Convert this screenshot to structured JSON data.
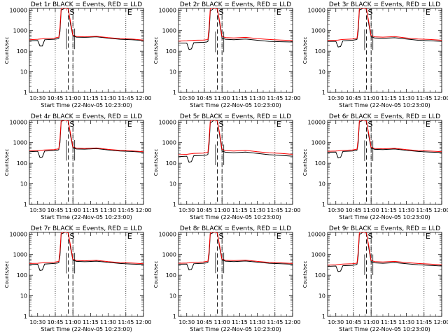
{
  "chart_data": [
    {
      "type": "line",
      "title": "Det 1r BLACK = Events, RED = LLD",
      "xlabel": "Start Time (22-Nov-05 10:23:00)",
      "ylabel": "Counts/sec",
      "x_ticks": [
        "10:30",
        "10:45",
        "11:00",
        "11:15",
        "11:30",
        "11:45",
        "12:00"
      ],
      "y_ticks": [
        "1",
        "10",
        "100",
        "1000",
        "10000"
      ],
      "y_scale": "log",
      "ylim": [
        1,
        12000
      ],
      "xlim_minutes": [
        23,
        120
      ],
      "markers": [
        "S",
        "E"
      ],
      "x_minutes": [
        23,
        30,
        32,
        34,
        36,
        44,
        47,
        48,
        49,
        50,
        53,
        55,
        56,
        58,
        60,
        63,
        70,
        80,
        90,
        100,
        110,
        120
      ],
      "series": [
        {
          "name": "Events",
          "color": "#000000",
          "values": [
            320,
            330,
            180,
            180,
            360,
            380,
            400,
            420,
            900,
            10000,
            12000,
            12000,
            12000,
            2000,
            560,
            480,
            470,
            500,
            430,
            380,
            360,
            330
          ]
        },
        {
          "name": "LLD",
          "color": "#ff0000",
          "values": [
            360,
            380,
            390,
            400,
            420,
            430,
            470,
            480,
            1500,
            12000,
            12000,
            12000,
            11000,
            2600,
            610,
            520,
            500,
            530,
            460,
            410,
            390,
            350
          ]
        }
      ]
    },
    {
      "type": "line",
      "title": "Det 2r BLACK = Events, RED = LLD",
      "xlabel": "Start Time (22-Nov-05 10:23:00)",
      "ylabel": "Counts/sec",
      "x_ticks": [
        "10:30",
        "10:45",
        "11:00",
        "11:15",
        "11:30",
        "11:45",
        "12:00"
      ],
      "y_ticks": [
        "1",
        "10",
        "100",
        "1000",
        "10000"
      ],
      "y_scale": "log",
      "ylim": [
        1,
        12000
      ],
      "xlim_minutes": [
        23,
        120
      ],
      "markers": [
        "S",
        "E"
      ],
      "x_minutes": [
        23,
        30,
        32,
        34,
        36,
        44,
        47,
        48,
        49,
        50,
        53,
        55,
        56,
        58,
        60,
        63,
        70,
        80,
        90,
        100,
        110,
        120
      ],
      "series": [
        {
          "name": "Events",
          "color": "#000000",
          "values": [
            250,
            250,
            120,
            130,
            260,
            270,
            280,
            300,
            800,
            9000,
            12000,
            12000,
            12000,
            2200,
            430,
            380,
            360,
            390,
            340,
            300,
            290,
            280
          ]
        },
        {
          "name": "LLD",
          "color": "#ff0000",
          "values": [
            310,
            320,
            330,
            330,
            340,
            350,
            360,
            380,
            1400,
            12000,
            12000,
            12000,
            11000,
            2800,
            520,
            460,
            440,
            470,
            410,
            370,
            350,
            330
          ]
        }
      ]
    },
    {
      "type": "line",
      "title": "Det 3r BLACK = Events, RED = LLD",
      "xlabel": "Start Time (22-Nov-05 10:23:00)",
      "ylabel": "Counts/sec",
      "x_ticks": [
        "10:30",
        "10:45",
        "11:00",
        "11:15",
        "11:30",
        "11:45",
        "12:00"
      ],
      "y_ticks": [
        "1",
        "10",
        "100",
        "1000",
        "10000"
      ],
      "y_scale": "log",
      "ylim": [
        1,
        12000
      ],
      "xlim_minutes": [
        23,
        120
      ],
      "markers": [
        "S",
        "E"
      ],
      "x_minutes": [
        23,
        30,
        32,
        34,
        36,
        44,
        47,
        48,
        49,
        50,
        53,
        55,
        56,
        58,
        60,
        63,
        70,
        80,
        90,
        100,
        110,
        120
      ],
      "series": [
        {
          "name": "Events",
          "color": "#000000",
          "values": [
            300,
            300,
            160,
            170,
            320,
            340,
            360,
            380,
            900,
            10000,
            12000,
            12000,
            12000,
            2100,
            500,
            440,
            420,
            450,
            390,
            340,
            320,
            300
          ]
        },
        {
          "name": "LLD",
          "color": "#ff0000",
          "values": [
            330,
            340,
            350,
            360,
            370,
            390,
            420,
            430,
            1500,
            12000,
            12000,
            12000,
            11000,
            2700,
            570,
            500,
            480,
            510,
            440,
            390,
            370,
            340
          ]
        }
      ]
    },
    {
      "type": "line",
      "title": "Det 4r BLACK = Events, RED = LLD",
      "xlabel": "Start Time (22-Nov-05 10:23:00)",
      "ylabel": "Counts/sec",
      "x_ticks": [
        "10:30",
        "10:45",
        "11:00",
        "11:15",
        "11:30",
        "11:45",
        "12:00"
      ],
      "y_ticks": [
        "1",
        "10",
        "100",
        "1000",
        "10000"
      ],
      "y_scale": "log",
      "ylim": [
        1,
        12000
      ],
      "xlim_minutes": [
        23,
        120
      ],
      "markers": [
        "S",
        "E"
      ],
      "x_minutes": [
        23,
        30,
        32,
        34,
        36,
        44,
        47,
        48,
        49,
        50,
        53,
        55,
        56,
        58,
        60,
        63,
        70,
        80,
        90,
        100,
        110,
        120
      ],
      "series": [
        {
          "name": "Events",
          "color": "#000000",
          "values": [
            360,
            380,
            190,
            200,
            390,
            410,
            430,
            450,
            1000,
            11000,
            12000,
            12000,
            12000,
            2100,
            560,
            490,
            480,
            510,
            440,
            390,
            370,
            340
          ]
        },
        {
          "name": "LLD",
          "color": "#ff0000",
          "values": [
            400,
            410,
            420,
            430,
            440,
            460,
            490,
            500,
            1600,
            12000,
            12000,
            12000,
            11000,
            2700,
            620,
            540,
            520,
            550,
            470,
            420,
            400,
            360
          ]
        }
      ]
    },
    {
      "type": "line",
      "title": "Det 5r BLACK = Events, RED = LLD",
      "xlabel": "Start Time (22-Nov-05 10:23:00)",
      "ylabel": "Counts/sec",
      "x_ticks": [
        "10:30",
        "10:45",
        "11:00",
        "11:15",
        "11:30",
        "11:45",
        "12:00"
      ],
      "y_ticks": [
        "1",
        "10",
        "100",
        "1000",
        "10000"
      ],
      "y_scale": "log",
      "ylim": [
        1,
        12000
      ],
      "xlim_minutes": [
        23,
        120
      ],
      "markers": [
        "S",
        "E"
      ],
      "x_minutes": [
        23,
        30,
        32,
        34,
        36,
        44,
        47,
        48,
        49,
        50,
        53,
        55,
        56,
        58,
        60,
        63,
        70,
        80,
        90,
        100,
        110,
        120
      ],
      "series": [
        {
          "name": "Events",
          "color": "#000000",
          "values": [
            210,
            220,
            110,
            120,
            230,
            240,
            250,
            270,
            800,
            9000,
            12000,
            12000,
            12000,
            2200,
            390,
            340,
            320,
            350,
            300,
            260,
            240,
            220
          ]
        },
        {
          "name": "LLD",
          "color": "#ff0000",
          "values": [
            260,
            270,
            280,
            290,
            300,
            310,
            330,
            340,
            1400,
            12000,
            12000,
            12000,
            11000,
            2800,
            470,
            410,
            390,
            420,
            360,
            320,
            300,
            270
          ]
        }
      ]
    },
    {
      "type": "line",
      "title": "Det 6r BLACK = Events, RED = LLD",
      "xlabel": "Start Time (22-Nov-05 10:23:00)",
      "ylabel": "Counts/sec",
      "x_ticks": [
        "10:30",
        "10:45",
        "11:00",
        "11:15",
        "11:30",
        "11:45",
        "12:00"
      ],
      "y_ticks": [
        "1",
        "10",
        "100",
        "1000",
        "10000"
      ],
      "y_scale": "log",
      "ylim": [
        1,
        12000
      ],
      "xlim_minutes": [
        23,
        120
      ],
      "markers": [
        "S",
        "E"
      ],
      "x_minutes": [
        23,
        30,
        32,
        34,
        36,
        44,
        47,
        48,
        49,
        50,
        53,
        55,
        56,
        58,
        60,
        63,
        70,
        80,
        90,
        100,
        110,
        120
      ],
      "series": [
        {
          "name": "Events",
          "color": "#000000",
          "values": [
            340,
            350,
            180,
            190,
            370,
            390,
            410,
            430,
            950,
            10000,
            12000,
            12000,
            12000,
            2100,
            540,
            470,
            460,
            490,
            420,
            370,
            350,
            330
          ]
        },
        {
          "name": "LLD",
          "color": "#ff0000",
          "values": [
            380,
            390,
            400,
            410,
            420,
            440,
            470,
            480,
            1500,
            12000,
            12000,
            12000,
            11000,
            2700,
            600,
            520,
            500,
            530,
            460,
            410,
            390,
            360
          ]
        }
      ]
    },
    {
      "type": "line",
      "title": "Det 7r BLACK = Events, RED = LLD",
      "xlabel": "Start Time (22-Nov-05 10:23:00)",
      "ylabel": "Counts/sec",
      "x_ticks": [
        "10:30",
        "10:45",
        "11:00",
        "11:15",
        "11:30",
        "11:45",
        "12:00"
      ],
      "y_ticks": [
        "1",
        "10",
        "100",
        "1000",
        "10000"
      ],
      "y_scale": "log",
      "ylim": [
        1,
        12000
      ],
      "xlim_minutes": [
        23,
        120
      ],
      "markers": [
        "S",
        "E"
      ],
      "x_minutes": [
        23,
        30,
        32,
        34,
        36,
        44,
        47,
        48,
        49,
        50,
        53,
        55,
        56,
        58,
        60,
        63,
        70,
        80,
        90,
        100,
        110,
        120
      ],
      "series": [
        {
          "name": "Events",
          "color": "#000000",
          "values": [
            330,
            340,
            170,
            180,
            350,
            370,
            390,
            410,
            900,
            10000,
            12000,
            12000,
            12000,
            2100,
            540,
            470,
            450,
            480,
            420,
            370,
            350,
            330
          ]
        },
        {
          "name": "LLD",
          "color": "#ff0000",
          "values": [
            370,
            380,
            390,
            400,
            410,
            430,
            460,
            470,
            1500,
            12000,
            12000,
            12000,
            11000,
            2700,
            600,
            520,
            500,
            530,
            460,
            410,
            390,
            360
          ]
        }
      ]
    },
    {
      "type": "line",
      "title": "Det 8r BLACK = Events, RED = LLD",
      "xlabel": "Start Time (22-Nov-05 10:23:00)",
      "ylabel": "Counts/sec",
      "x_ticks": [
        "10:30",
        "10:45",
        "11:00",
        "11:15",
        "11:30",
        "11:45",
        "12:00"
      ],
      "y_ticks": [
        "1",
        "10",
        "100",
        "1000",
        "10000"
      ],
      "y_scale": "log",
      "ylim": [
        1,
        12000
      ],
      "xlim_minutes": [
        23,
        120
      ],
      "markers": [
        "S",
        "E"
      ],
      "x_minutes": [
        23,
        30,
        32,
        34,
        36,
        44,
        47,
        48,
        49,
        50,
        53,
        55,
        56,
        58,
        60,
        63,
        70,
        80,
        90,
        100,
        110,
        120
      ],
      "series": [
        {
          "name": "Events",
          "color": "#000000",
          "values": [
            340,
            350,
            180,
            190,
            360,
            380,
            400,
            420,
            950,
            10000,
            12000,
            12000,
            12000,
            2100,
            550,
            480,
            460,
            490,
            430,
            380,
            360,
            340
          ]
        },
        {
          "name": "LLD",
          "color": "#ff0000",
          "values": [
            380,
            390,
            400,
            410,
            420,
            440,
            470,
            480,
            1500,
            12000,
            12000,
            12000,
            11000,
            2700,
            610,
            530,
            510,
            540,
            470,
            420,
            400,
            370
          ]
        }
      ]
    },
    {
      "type": "line",
      "title": "Det 9r BLACK = Events, RED = LLD",
      "xlabel": "Start Time (22-Nov-05 10:23:00)",
      "ylabel": "Counts/sec",
      "x_ticks": [
        "10:30",
        "10:45",
        "11:00",
        "11:15",
        "11:30",
        "11:45",
        "12:00"
      ],
      "y_ticks": [
        "1",
        "10",
        "100",
        "1000",
        "10000"
      ],
      "y_scale": "log",
      "ylim": [
        1,
        12000
      ],
      "xlim_minutes": [
        23,
        120
      ],
      "markers": [
        "S",
        "E"
      ],
      "x_minutes": [
        23,
        30,
        32,
        34,
        36,
        44,
        47,
        48,
        49,
        50,
        53,
        55,
        56,
        58,
        60,
        63,
        70,
        80,
        90,
        100,
        110,
        120
      ],
      "series": [
        {
          "name": "Events",
          "color": "#000000",
          "values": [
            270,
            280,
            150,
            160,
            290,
            300,
            320,
            340,
            850,
            9500,
            12000,
            12000,
            12000,
            2100,
            450,
            400,
            380,
            410,
            360,
            320,
            300,
            280
          ]
        },
        {
          "name": "LLD",
          "color": "#ff0000",
          "values": [
            310,
            320,
            330,
            340,
            350,
            360,
            380,
            390,
            1400,
            12000,
            12000,
            12000,
            11000,
            2700,
            520,
            460,
            440,
            470,
            410,
            370,
            350,
            320
          ]
        }
      ]
    }
  ]
}
